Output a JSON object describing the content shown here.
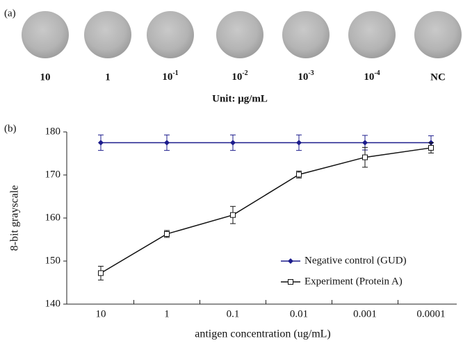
{
  "panel_a": {
    "label": "(a)",
    "sample_labels": [
      "10",
      "1",
      {
        "base": "10",
        "exponent": "-1"
      },
      {
        "base": "10",
        "exponent": "-2"
      },
      {
        "base": "10",
        "exponent": "-3"
      },
      {
        "base": "10",
        "exponent": "-4"
      },
      "NC"
    ],
    "unit": "Unit: μg/mL"
  },
  "panel_b_label": "(b)",
  "chart_data": {
    "type": "line",
    "x_label": "antigen concentration (ug/mL)",
    "y_label": "8-bit grayscale",
    "categories": [
      "10",
      "1",
      "0.1",
      "0.01",
      "0.001",
      "0.0001"
    ],
    "ylim": [
      140,
      180
    ],
    "yticks": [
      140,
      150,
      160,
      170,
      180
    ],
    "legend": "lower right",
    "series": [
      {
        "name": "Negative control (GUD)",
        "color": "#1c1c8c",
        "marker": "diamond",
        "values": [
          177.5,
          177.5,
          177.5,
          177.5,
          177.5,
          177.5
        ],
        "errors": [
          1.8,
          1.8,
          1.8,
          1.8,
          1.7,
          1.6
        ]
      },
      {
        "name": "Experiment (Protein A)",
        "color": "#111111",
        "marker": "open-square",
        "values": [
          147.2,
          156.3,
          160.7,
          170.1,
          174.1,
          176.3
        ],
        "errors": [
          1.6,
          0.8,
          2.0,
          0.8,
          2.3,
          1.2
        ]
      }
    ]
  }
}
